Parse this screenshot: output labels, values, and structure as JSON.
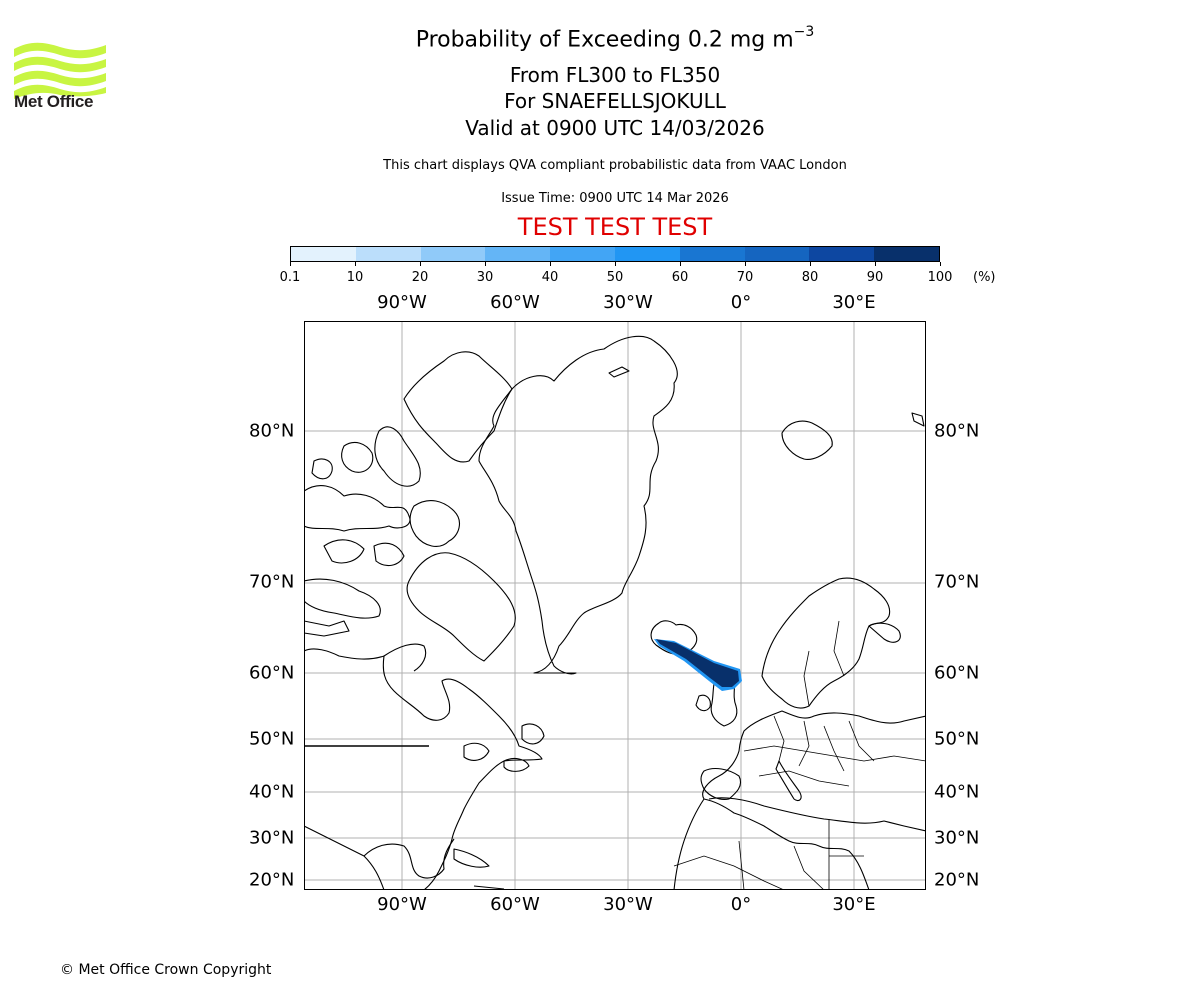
{
  "logo": {
    "name": "Met Office",
    "color": "#c8f542",
    "text_color": "#231f20"
  },
  "header": {
    "title_main": "Probability of Exceeding 0.2 mg m",
    "title_superscript": "−3",
    "flight_levels": "From FL300 to FL350",
    "volcano": "For SNAEFELLSJOKULL",
    "valid_time": "Valid at 0900 UTC 14/03/2026",
    "description": "This chart displays QVA compliant probabilistic data from VAAC London",
    "issue_time": "Issue Time: 0900 UTC 14 Mar 2026",
    "test_banner": "TEST TEST TEST",
    "test_banner_color": "#e00000"
  },
  "colorbar": {
    "unit": "(%)",
    "ticks": [
      "0.1",
      "10",
      "20",
      "30",
      "40",
      "50",
      "60",
      "70",
      "80",
      "90",
      "100"
    ],
    "colors": [
      "#e3f2fd",
      "#bbdefb",
      "#90caf9",
      "#64b5f6",
      "#42a5f5",
      "#2196f3",
      "#1976d2",
      "#1565c0",
      "#0d47a1",
      "#08306b"
    ]
  },
  "map": {
    "projection": "equirectangular-like",
    "lon_labels": [
      "90°W",
      "60°W",
      "30°W",
      "0°",
      "30°E"
    ],
    "lat_labels": [
      "80°N",
      "70°N",
      "60°N",
      "50°N",
      "40°N",
      "30°N",
      "20°N"
    ],
    "gridline_color": "#b0b0b0",
    "plume": {
      "source": "SNAEFELLSJOKULL",
      "direction": "southeast toward northern Scotland",
      "max_probability_band": "90-100",
      "core_color": "#08306b",
      "edge_color": "#2196f3"
    }
  },
  "chart_data": {
    "type": "heatmap",
    "title": "Probability of Exceeding 0.2 mg m−3",
    "subtitle": [
      "From FL300 to FL350",
      "For SNAEFELLSJOKULL",
      "Valid at 0900 UTC 14/03/2026"
    ],
    "colorbar_levels": [
      0.1,
      10,
      20,
      30,
      40,
      50,
      60,
      70,
      80,
      90,
      100
    ],
    "colorbar_unit": "%",
    "x_ticks": [
      "90°W",
      "60°W",
      "30°W",
      "0°",
      "30°E"
    ],
    "y_ticks": [
      "80°N",
      "70°N",
      "60°N",
      "50°N",
      "40°N",
      "30°N",
      "20°N"
    ],
    "xlim": [
      "~127°W",
      "~45°E"
    ],
    "ylim": [
      "~18°N",
      "~87°N"
    ],
    "plume_extent": {
      "start": {
        "lon": -23.8,
        "lat": 64.8
      },
      "end": {
        "lon": 0,
        "lat": 58.5
      },
      "dominant_probability": "90-100%"
    },
    "grid": true
  },
  "footer": {
    "copyright": "© Met Office Crown Copyright"
  }
}
